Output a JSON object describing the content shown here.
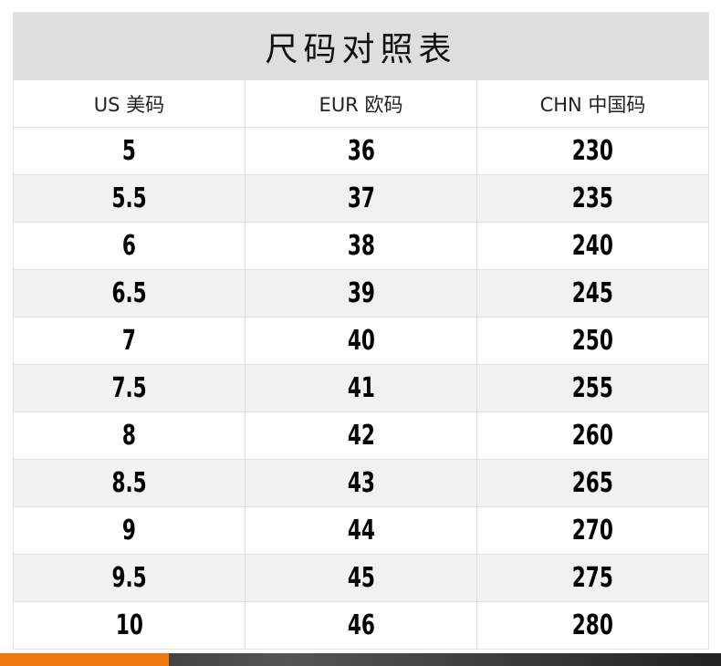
{
  "title": "尺码对照表",
  "columns": [
    "US 美码",
    "EUR 欧码",
    "CHN 中国码"
  ],
  "rows": [
    [
      "5",
      "36",
      "230"
    ],
    [
      "5.5",
      "37",
      "235"
    ],
    [
      "6",
      "38",
      "240"
    ],
    [
      "6.5",
      "39",
      "245"
    ],
    [
      "7",
      "40",
      "250"
    ],
    [
      "7.5",
      "41",
      "255"
    ],
    [
      "8",
      "42",
      "260"
    ],
    [
      "8.5",
      "43",
      "265"
    ],
    [
      "9",
      "44",
      "270"
    ],
    [
      "9.5",
      "45",
      "275"
    ],
    [
      "10",
      "46",
      "280"
    ]
  ],
  "colors": {
    "title_bg": "#dedede",
    "alt_row_bg": "#f1f1f1",
    "accent": "#f07a12"
  }
}
